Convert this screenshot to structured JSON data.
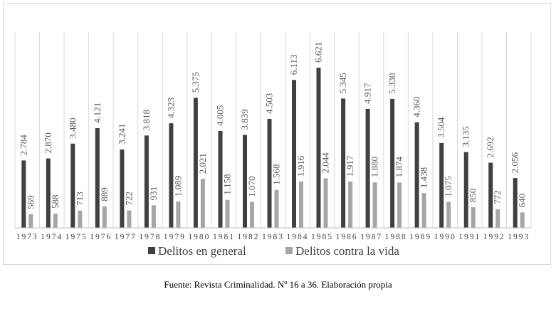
{
  "chart_data": {
    "type": "bar",
    "categories": [
      "1973",
      "1974",
      "1975",
      "1976",
      "1977",
      "1978",
      "1979",
      "1980",
      "1981",
      "1982",
      "1983",
      "1984",
      "1985",
      "1986",
      "1987",
      "1988",
      "1989",
      "1990",
      "1991",
      "1992",
      "1993"
    ],
    "series": [
      {
        "name": "Delitos en general",
        "color": "#404040",
        "values": [
          2784,
          2870,
          3480,
          4121,
          3241,
          3818,
          4323,
          5375,
          4005,
          3839,
          4503,
          6113,
          6621,
          5345,
          4917,
          5330,
          4360,
          3504,
          3135,
          2692,
          2056
        ],
        "labels": [
          "2.784",
          "2.870",
          "3.480",
          "4.121",
          "3.241",
          "3.818",
          "4.323",
          "5.375",
          "4.005",
          "3.839",
          "4.503",
          "6.113",
          "6.621",
          "5.345",
          "4.917",
          "5.330",
          "4.360",
          "3.504",
          "3.135",
          "2.692",
          "2.056"
        ]
      },
      {
        "name": "Delitos contra la vida",
        "color": "#a6a6a6",
        "values": [
          569,
          588,
          713,
          889,
          722,
          931,
          1089,
          2021,
          1158,
          1070,
          1568,
          1916,
          2044,
          1917,
          1880,
          1874,
          1438,
          1075,
          850,
          772,
          640
        ],
        "labels": [
          "569",
          "588",
          "713",
          "889",
          "722",
          "931",
          "1.089",
          "2.021",
          "1.158",
          "1.070",
          "1.568",
          "1.916",
          "2.044",
          "1.917",
          "1.880",
          "1.874",
          "1.438",
          "1.075",
          "850",
          "772",
          "640"
        ]
      }
    ],
    "ylim": [
      0,
      6800
    ],
    "grid": true,
    "legend_position": "bottom"
  },
  "source": "Fuente: Revista Criminalidad. Nº 16 a 36. Elaboración propia"
}
